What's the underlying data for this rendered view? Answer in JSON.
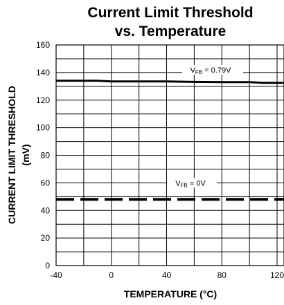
{
  "chart_data": {
    "type": "line",
    "title_line1": "Current Limit Threshold",
    "title_line2": "vs. Temperature",
    "xlabel": "TEMPERATURE (°C)",
    "ylabel_line1": "CURRENT LIMIT THRESHOLD",
    "ylabel_line2": "(mV)",
    "xlim": [
      -40,
      125
    ],
    "ylim": [
      0,
      160
    ],
    "x_ticks": [
      -40,
      0,
      40,
      80,
      120
    ],
    "y_ticks": [
      0,
      20,
      40,
      60,
      80,
      100,
      120,
      140,
      160
    ],
    "grid": true,
    "series": [
      {
        "name": "VFB = 0.79V",
        "label_main": "V",
        "label_sub": "FB",
        "label_rest": " =  0.79V",
        "style": "solid",
        "color": "#000000",
        "x": [
          -40,
          -20,
          -10,
          0,
          20,
          40,
          60,
          80,
          100,
          110,
          125
        ],
        "y": [
          134,
          134,
          134,
          133.5,
          133.5,
          133.5,
          133.2,
          133,
          133,
          132.5,
          132.5
        ]
      },
      {
        "name": "VFB = 0V",
        "label_main": "V",
        "label_sub": "FB",
        "label_rest": " =   0V",
        "style": "dashed",
        "color": "#000000",
        "x": [
          -40,
          0,
          40,
          80,
          125
        ],
        "y": [
          48,
          48,
          48,
          48,
          48
        ]
      }
    ]
  }
}
